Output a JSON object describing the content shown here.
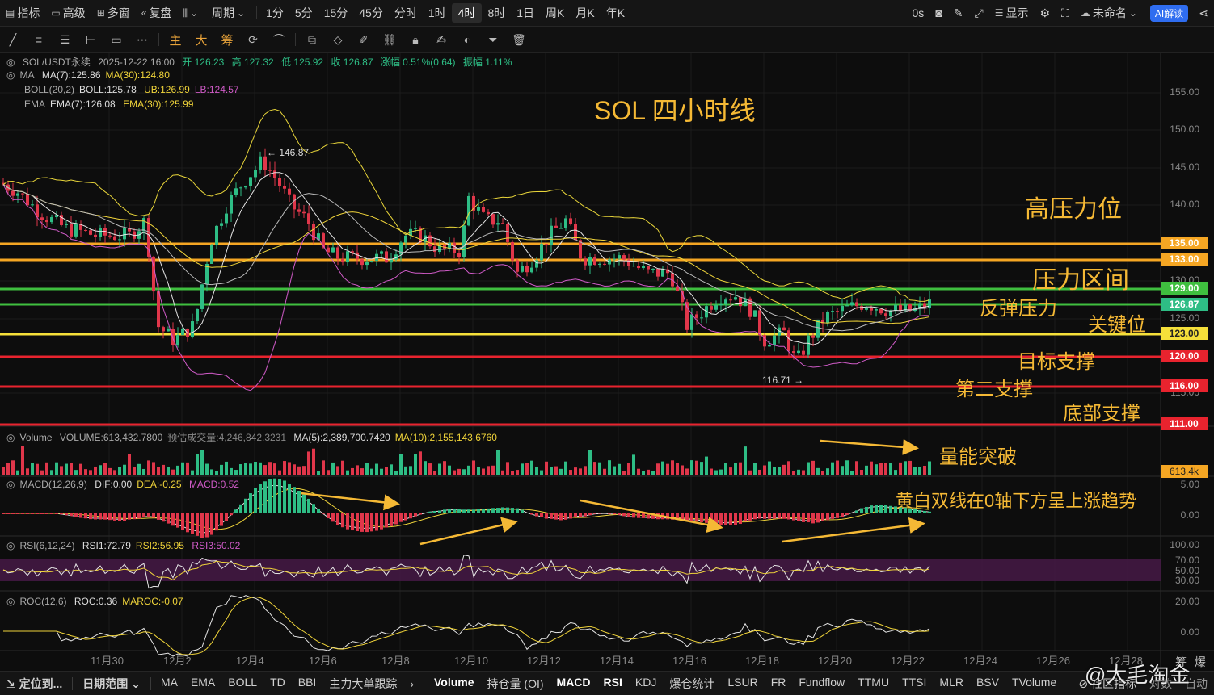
{
  "topbar": {
    "indicators": "指标",
    "advanced": "高级",
    "multi_window": "多窗",
    "replay": "复盘",
    "chart_type_icon": "candlestick-icon",
    "period": "周期",
    "intervals": [
      "1分",
      "5分",
      "15分",
      "45分",
      "分时",
      "1时",
      "4时",
      "8时",
      "1日",
      "周K",
      "月K",
      "年K"
    ],
    "active_interval": "4时",
    "countdown": "0s",
    "display": "显示",
    "unnamed": "未命名",
    "ai": "AI解读"
  },
  "toolbar2": {
    "main": "主",
    "big": "大",
    "chip": "筹"
  },
  "legend": {
    "symbol": "SOL/USDT永续",
    "datetime": "2025-12-22 16:00",
    "open": "开 126.23",
    "high": "高 127.32",
    "low": "低 125.92",
    "close": "收 126.87",
    "change": "涨幅 0.51%(0.64)",
    "amplitude": "振幅 1.11%",
    "ma_name": "MA",
    "ma7": "MA(7):125.86",
    "ma30": "MA(30):124.80",
    "boll_name": "BOLL(20,2)",
    "boll": "BOLL:125.78",
    "ub": "UB:126.99",
    "lb": "LB:124.57",
    "ema_name": "EMA",
    "ema7": "EMA(7):126.08",
    "ema30": "EMA(30):125.99"
  },
  "price_axis": [
    "155.00",
    "150.00",
    "145.00",
    "140.00",
    "135.00",
    "130.00",
    "125.00",
    "120.00",
    "115.00"
  ],
  "price_labels": {
    "p135": "135.00",
    "p133": "133.00",
    "p129": "129.00",
    "p12687": "126.87",
    "p123": "123.00",
    "p120": "120.00",
    "p116": "116.00",
    "p111": "111.00"
  },
  "marks": {
    "high": "← 146.87",
    "low": "116.71 →"
  },
  "annotations": {
    "title": "SOL 四小时线",
    "high_resistance": "高压力位",
    "resistance_zone": "压力区间",
    "rebound_resistance": "反弹压力",
    "key_level": "关键位",
    "target_support": "目标支撑",
    "second_support": "第二支撑",
    "bottom_support": "底部支撑",
    "volume_breakout": "量能突破",
    "macd_note": "黄白双线在0轴下方呈上涨趋势"
  },
  "volume": {
    "name": "Volume",
    "value": "VOLUME:613,432.7800",
    "forecast": "预估成交量:4,246,842.3231",
    "ma5": "MA(5):2,389,700.7420",
    "ma10": "MA(10):2,155,143.6760",
    "axis_label": "613.4k"
  },
  "macd": {
    "name": "MACD(12,26,9)",
    "dif": "DIF:0.00",
    "dea": "DEA:-0.25",
    "macd": "MACD:0.52",
    "axis": [
      "5.00",
      "0.00"
    ]
  },
  "rsi": {
    "name": "RSI(6,12,24)",
    "rsi1": "RSI1:72.79",
    "rsi2": "RSI2:56.95",
    "rsi3": "RSI3:50.02",
    "axis": [
      "100.00",
      "70.00",
      "50.00",
      "30.00"
    ]
  },
  "roc": {
    "name": "ROC(12,6)",
    "roc": "ROC:0.36",
    "maroc": "MAROC:-0.07",
    "axis": [
      "20.00",
      "0.00"
    ]
  },
  "time_axis": [
    "11月30",
    "12月2",
    "12月4",
    "12月6",
    "12月8",
    "12月10",
    "12月12",
    "12月14",
    "12月16",
    "12月18",
    "12月20",
    "12月22",
    "12月24",
    "12月26",
    "12月28"
  ],
  "bottombar": {
    "locate": "定位到...",
    "date_range": "日期范围",
    "main_ind": [
      "MA",
      "EMA",
      "BOLL",
      "TD",
      "BBI",
      "主力大单跟踪"
    ],
    "sub_ind": [
      "Volume",
      "持仓量 (OI)",
      "MACD",
      "RSI",
      "KDJ",
      "爆仓统计",
      "LSUR",
      "FR",
      "Fundflow",
      "TTMU",
      "TTSI",
      "MLR",
      "BSV",
      "TVolume"
    ],
    "community": "社区指标",
    "pair": "对数",
    "auto": "自动",
    "watermark": "@大毛淘金",
    "extra": [
      "筹",
      "爆"
    ]
  },
  "colors": {
    "up": "#2ebd85",
    "down": "#e0364a",
    "orange_line": "#f5a623",
    "green_line": "#3fbf3f",
    "yellow_line": "#f5e03a",
    "red_line": "#e8232e",
    "annotation": "#f5b935"
  }
}
